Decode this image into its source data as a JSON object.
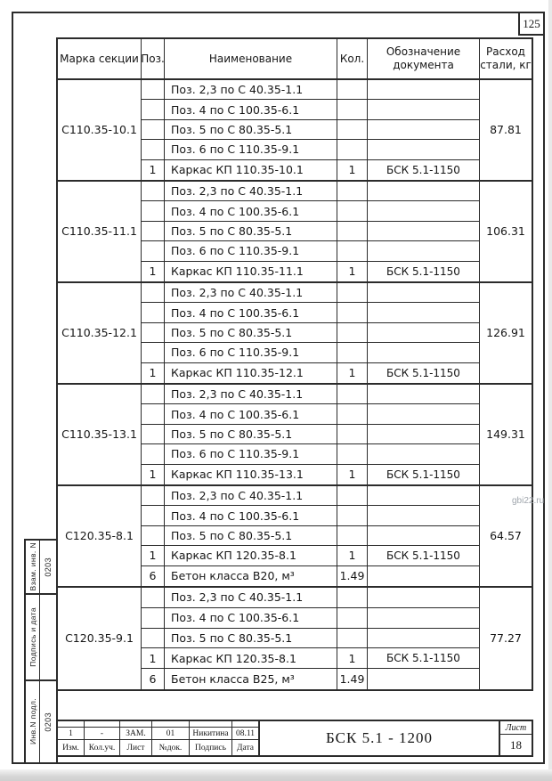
{
  "page": {
    "number": "125",
    "watermark": "gbi22.ru"
  },
  "spec_table": {
    "headers": {
      "mark": "Марка секции",
      "pos": "Поз.",
      "name": "Наименование",
      "qty": "Кол.",
      "doc": "Обозначение\nдокумента",
      "steel": "Расход\nстали, кг"
    },
    "sections": [
      {
        "mark": "С110.35-10.1",
        "steel": "87.81",
        "rows": [
          {
            "pos": "",
            "name": "Поз. 2,3 по С 40.35-1.1",
            "qty": "",
            "doc": ""
          },
          {
            "pos": "",
            "name": "Поз. 4 по С 100.35-6.1",
            "qty": "",
            "doc": ""
          },
          {
            "pos": "",
            "name": "Поз. 5 по С 80.35-5.1",
            "qty": "",
            "doc": ""
          },
          {
            "pos": "",
            "name": "Поз. 6 по С 110.35-9.1",
            "qty": "",
            "doc": ""
          },
          {
            "pos": "1",
            "name": "Каркас КП 110.35-10.1",
            "qty": "1",
            "doc": "БСК 5.1-1150"
          }
        ]
      },
      {
        "mark": "С110.35-11.1",
        "steel": "106.31",
        "rows": [
          {
            "pos": "",
            "name": "Поз. 2,3 по С 40.35-1.1",
            "qty": "",
            "doc": ""
          },
          {
            "pos": "",
            "name": "Поз. 4 по С 100.35-6.1",
            "qty": "",
            "doc": ""
          },
          {
            "pos": "",
            "name": "Поз. 5 по С 80.35-5.1",
            "qty": "",
            "doc": ""
          },
          {
            "pos": "",
            "name": "Поз. 6 по С 110.35-9.1",
            "qty": "",
            "doc": ""
          },
          {
            "pos": "1",
            "name": "Каркас КП 110.35-11.1",
            "qty": "1",
            "doc": "БСК 5.1-1150"
          }
        ]
      },
      {
        "mark": "С110.35-12.1",
        "steel": "126.91",
        "rows": [
          {
            "pos": "",
            "name": "Поз. 2,3 по С 40.35-1.1",
            "qty": "",
            "doc": ""
          },
          {
            "pos": "",
            "name": "Поз. 4 по С 100.35-6.1",
            "qty": "",
            "doc": ""
          },
          {
            "pos": "",
            "name": "Поз. 5 по С 80.35-5.1",
            "qty": "",
            "doc": ""
          },
          {
            "pos": "",
            "name": "Поз. 6 по С 110.35-9.1",
            "qty": "",
            "doc": ""
          },
          {
            "pos": "1",
            "name": "Каркас КП 110.35-12.1",
            "qty": "1",
            "doc": "БСК 5.1-1150"
          }
        ]
      },
      {
        "mark": "С110.35-13.1",
        "steel": "149.31",
        "rows": [
          {
            "pos": "",
            "name": "Поз. 2,3 по С 40.35-1.1",
            "qty": "",
            "doc": ""
          },
          {
            "pos": "",
            "name": "Поз. 4 по С 100.35-6.1",
            "qty": "",
            "doc": ""
          },
          {
            "pos": "",
            "name": "Поз. 5 по С 80.35-5.1",
            "qty": "",
            "doc": ""
          },
          {
            "pos": "",
            "name": "Поз. 6 по С 110.35-9.1",
            "qty": "",
            "doc": ""
          },
          {
            "pos": "1",
            "name": "Каркас КП 110.35-13.1",
            "qty": "1",
            "doc": "БСК 5.1-1150"
          }
        ]
      },
      {
        "mark": "С120.35-8.1",
        "steel": "64.57",
        "rows": [
          {
            "pos": "",
            "name": "Поз. 2,3 по С 40.35-1.1",
            "qty": "",
            "doc": ""
          },
          {
            "pos": "",
            "name": "Поз. 4 по С 100.35-6.1",
            "qty": "",
            "doc": ""
          },
          {
            "pos": "",
            "name": "Поз. 5 по С 80.35-5.1",
            "qty": "",
            "doc": ""
          },
          {
            "pos": "1",
            "name": "Каркас КП 120.35-8.1",
            "qty": "1",
            "doc": "БСК 5.1-1150"
          },
          {
            "pos": "6",
            "name": "Бетон класса В20, м³",
            "qty": "1.49",
            "doc": ""
          }
        ]
      },
      {
        "mark": "С120.35-9.1",
        "steel": "77.27",
        "rows": [
          {
            "pos": "",
            "name": "Поз. 2,3 по С 40.35-1.1",
            "qty": "",
            "doc": ""
          },
          {
            "pos": "",
            "name": "Поз. 4 по С 100.35-6.1",
            "qty": "",
            "doc": ""
          },
          {
            "pos": "",
            "name": "Поз. 5 по С 80.35-5.1",
            "qty": "",
            "doc": ""
          },
          {
            "pos": "1",
            "name": "Каркас КП 120.35-8.1",
            "qty": "1",
            "doc": "БСК 5.1-1150"
          },
          {
            "pos": "6",
            "name": "Бетон класса В25, м³",
            "qty": "1.49",
            "doc": ""
          }
        ]
      }
    ]
  },
  "title_block": {
    "doc_number": "БСК 5.1 - 1200",
    "sheet_label": "Лист",
    "sheet_number": "18",
    "revision": {
      "labels": [
        "Изм.",
        "Кол.уч.",
        "Лист",
        "№док.",
        "Подпись",
        "Дата"
      ],
      "values": [
        "1",
        "-",
        "ЗАМ.",
        "01",
        "Никитина",
        "08.11"
      ]
    }
  },
  "side_stamps": [
    {
      "label": "Взам. инв. N",
      "value": "0203"
    },
    {
      "label": "Подпись и дата",
      "value": ""
    },
    {
      "label": "Инв.N подл.",
      "value": "0203"
    }
  ]
}
